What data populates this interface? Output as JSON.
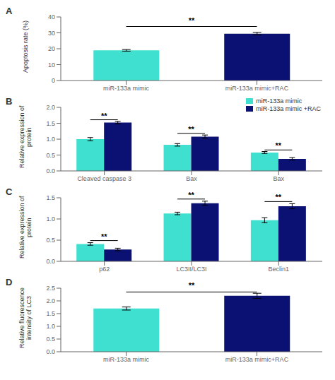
{
  "chart_data": [
    {
      "type": "bar",
      "title": "A",
      "categories": [
        "miR-133a mimic",
        "miR-133a mimic+RAC"
      ],
      "values": [
        19.0,
        29.5
      ],
      "errors": [
        0.5,
        0.8
      ],
      "colors": [
        "#40E0D0",
        "#0A1172"
      ],
      "ylabel": "Apoptosis rate (%)",
      "ylim": [
        0,
        40
      ],
      "yticks": [
        0,
        10,
        20,
        30,
        40
      ],
      "annotations": [
        {
          "text": "**",
          "y": 34
        }
      ],
      "grid": false
    },
    {
      "type": "bar",
      "title": "B",
      "categories": [
        "Cleaved caspase 3",
        "Bax",
        "Bax"
      ],
      "series": [
        {
          "name": "miR-133a mimic",
          "color": "#40E0D0",
          "values": [
            1.0,
            0.82,
            0.58
          ],
          "errors": [
            0.05,
            0.04,
            0.03
          ]
        },
        {
          "name": "miR-133a mimic +RAC",
          "color": "#0A1172",
          "values": [
            1.52,
            1.08,
            0.38
          ],
          "errors": [
            0.04,
            0.05,
            0.04
          ]
        }
      ],
      "ylabel": "Relative expression of protein",
      "ylim": [
        0,
        2.0
      ],
      "yticks": [
        {
          "value": 0,
          "label": "0.0"
        },
        {
          "value": 0.5,
          "label": "0.5"
        },
        {
          "value": 1.0,
          "label": "1.0"
        },
        {
          "value": 1.5,
          "label": "1.5"
        },
        {
          "value": 2.0,
          "label": "2.0"
        }
      ],
      "annotations": [
        "**",
        "**",
        "**"
      ],
      "legend": "upper right",
      "grid": false
    },
    {
      "type": "bar",
      "title": "C",
      "categories": [
        "p62",
        "LC3II/LC3I",
        "Beclin1"
      ],
      "series": [
        {
          "color": "#40E0D0",
          "values": [
            0.41,
            1.13,
            0.97
          ],
          "errors": [
            0.03,
            0.03,
            0.06
          ]
        },
        {
          "color": "#0A1172",
          "values": [
            0.28,
            1.37,
            1.3
          ],
          "errors": [
            0.03,
            0.05,
            0.06
          ]
        }
      ],
      "ylabel": "Relative expression of protein",
      "ylim": [
        0.0,
        1.5
      ],
      "yticks": [
        {
          "value": 0,
          "label": "0.0"
        },
        {
          "value": 0.5,
          "label": "0.5"
        },
        {
          "value": 1.0,
          "label": "1.0"
        },
        {
          "value": 1.5,
          "label": "1.5"
        }
      ],
      "annotations": [
        "**",
        "**",
        "**"
      ],
      "grid": false
    },
    {
      "type": "bar",
      "title": "D",
      "categories": [
        "miR-133a mimic",
        "miR-133a mimic+RAC"
      ],
      "values": [
        1.7,
        2.2
      ],
      "errors": [
        0.06,
        0.1
      ],
      "colors": [
        "#40E0D0",
        "#0A1172"
      ],
      "ylabel": "Relative fluorescence intensity of LC3",
      "ylim": [
        0,
        2.5
      ],
      "yticks": [
        {
          "value": 0,
          "label": "0.0"
        },
        {
          "value": 0.5,
          "label": "0.5"
        },
        {
          "value": 1.0,
          "label": "1.0"
        },
        {
          "value": 1.5,
          "label": "1.5"
        },
        {
          "value": 2.0,
          "label": "2.0"
        },
        {
          "value": 2.5,
          "label": "2.5"
        }
      ],
      "annotations": [
        {
          "text": "**",
          "y": 2.35
        }
      ],
      "grid": false
    }
  ]
}
